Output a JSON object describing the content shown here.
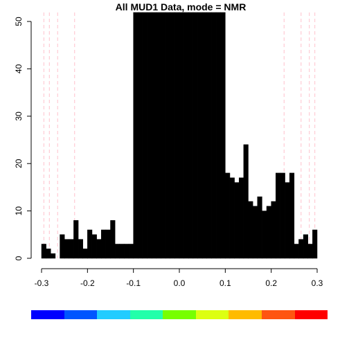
{
  "chart_data": {
    "type": "bar",
    "title": "All MUD1 Data, mode = NMR",
    "xlabel": "",
    "ylabel": "",
    "xlim": [
      -0.3,
      0.3
    ],
    "ylim": [
      0,
      50
    ],
    "x_ticks": [
      "-0.3",
      "-0.2",
      "-0.1",
      "0.0",
      "0.1",
      "0.2",
      "0.3"
    ],
    "y_ticks": [
      "0",
      "10",
      "20",
      "30",
      "40",
      "50"
    ],
    "bin_width": 0.01,
    "bins": [
      {
        "x": -0.3,
        "y": 3
      },
      {
        "x": -0.29,
        "y": 2
      },
      {
        "x": -0.28,
        "y": 1
      },
      {
        "x": -0.27,
        "y": 0
      },
      {
        "x": -0.26,
        "y": 5
      },
      {
        "x": -0.25,
        "y": 4
      },
      {
        "x": -0.24,
        "y": 4
      },
      {
        "x": -0.23,
        "y": 8
      },
      {
        "x": -0.22,
        "y": 4
      },
      {
        "x": -0.21,
        "y": 2
      },
      {
        "x": -0.2,
        "y": 6
      },
      {
        "x": -0.19,
        "y": 5
      },
      {
        "x": -0.18,
        "y": 4
      },
      {
        "x": -0.17,
        "y": 6
      },
      {
        "x": -0.16,
        "y": 6
      },
      {
        "x": -0.15,
        "y": 8
      },
      {
        "x": -0.14,
        "y": 3
      },
      {
        "x": -0.13,
        "y": 3
      },
      {
        "x": -0.12,
        "y": 3
      },
      {
        "x": -0.11,
        "y": 3
      },
      {
        "x": -0.1,
        "y": 55
      },
      {
        "x": -0.09,
        "y": 55
      },
      {
        "x": -0.08,
        "y": 55
      },
      {
        "x": -0.07,
        "y": 55
      },
      {
        "x": -0.06,
        "y": 55
      },
      {
        "x": -0.05,
        "y": 55
      },
      {
        "x": -0.04,
        "y": 55
      },
      {
        "x": -0.03,
        "y": 55
      },
      {
        "x": -0.02,
        "y": 55
      },
      {
        "x": -0.01,
        "y": 55
      },
      {
        "x": 0.0,
        "y": 55
      },
      {
        "x": 0.01,
        "y": 55
      },
      {
        "x": 0.02,
        "y": 55
      },
      {
        "x": 0.03,
        "y": 55
      },
      {
        "x": 0.04,
        "y": 55
      },
      {
        "x": 0.05,
        "y": 55
      },
      {
        "x": 0.06,
        "y": 55
      },
      {
        "x": 0.07,
        "y": 55
      },
      {
        "x": 0.08,
        "y": 55
      },
      {
        "x": 0.09,
        "y": 55
      },
      {
        "x": 0.1,
        "y": 18
      },
      {
        "x": 0.11,
        "y": 17
      },
      {
        "x": 0.12,
        "y": 16
      },
      {
        "x": 0.13,
        "y": 17
      },
      {
        "x": 0.14,
        "y": 24
      },
      {
        "x": 0.15,
        "y": 12
      },
      {
        "x": 0.16,
        "y": 11
      },
      {
        "x": 0.17,
        "y": 13
      },
      {
        "x": 0.18,
        "y": 10
      },
      {
        "x": 0.19,
        "y": 11
      },
      {
        "x": 0.2,
        "y": 12
      },
      {
        "x": 0.21,
        "y": 18
      },
      {
        "x": 0.22,
        "y": 18
      },
      {
        "x": 0.23,
        "y": 16
      },
      {
        "x": 0.24,
        "y": 18
      },
      {
        "x": 0.25,
        "y": 3
      },
      {
        "x": 0.26,
        "y": 4
      },
      {
        "x": 0.27,
        "y": 5
      },
      {
        "x": 0.28,
        "y": 3
      },
      {
        "x": 0.29,
        "y": 6
      }
    ],
    "reference_lines_x": [
      -0.295,
      -0.283,
      -0.265,
      -0.228,
      0.228,
      0.265,
      0.283,
      0.295
    ],
    "reference_line_color": "#ffc0cb",
    "bar_color": "#000000",
    "legend_colors": [
      "#0000ff",
      "#0055ff",
      "#22ccff",
      "#22ffaa",
      "#77ff00",
      "#ddff11",
      "#ffbb00",
      "#ff5511",
      "#ff0000"
    ]
  }
}
